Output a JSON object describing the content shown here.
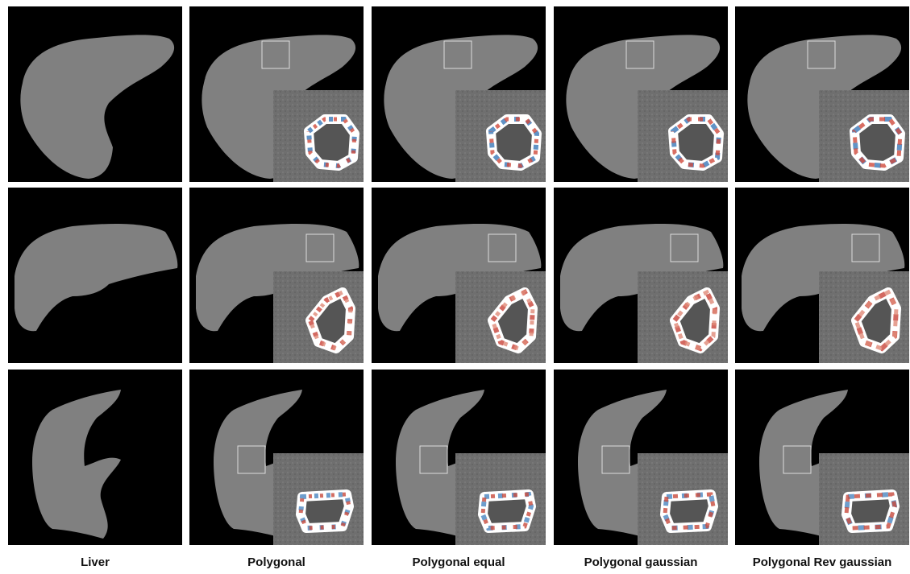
{
  "columns": [
    "Liver",
    "Polygonal",
    "Polygonal equal",
    "Polygonal gaussian",
    "Polygonal Rev gaussian"
  ]
}
